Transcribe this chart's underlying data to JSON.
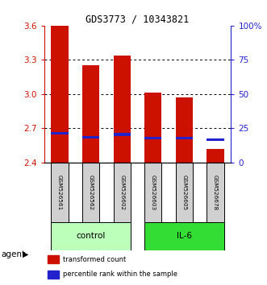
{
  "title": "GDS3773 / 10343821",
  "samples": [
    "GSM526561",
    "GSM526562",
    "GSM526602",
    "GSM526603",
    "GSM526605",
    "GSM526678"
  ],
  "red_values": [
    3.6,
    3.25,
    3.34,
    3.01,
    2.97,
    2.52
  ],
  "blue_values": [
    2.655,
    2.62,
    2.645,
    2.615,
    2.615,
    2.6
  ],
  "bar_bottom": 2.4,
  "ylim_min": 2.4,
  "ylim_max": 3.6,
  "yticks_left": [
    2.4,
    2.7,
    3.0,
    3.3,
    3.6
  ],
  "yticks_right_vals": [
    0,
    25,
    50,
    75,
    100
  ],
  "yticks_right_labels": [
    "0",
    "25",
    "50",
    "75",
    "100%"
  ],
  "red_color": "#cc1100",
  "blue_color": "#2222cc",
  "control_color": "#bbffbb",
  "il6_color": "#33dd33",
  "sample_box_color": "#d0d0d0",
  "legend_red": "transformed count",
  "legend_blue": "percentile rank within the sample",
  "agent_label": "agent",
  "bar_width": 0.55
}
